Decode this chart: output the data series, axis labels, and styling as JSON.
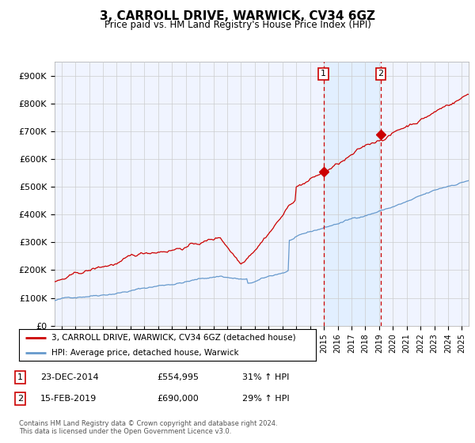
{
  "title": "3, CARROLL DRIVE, WARWICK, CV34 6GZ",
  "subtitle": "Price paid vs. HM Land Registry's House Price Index (HPI)",
  "ylabel_ticks": [
    "£0",
    "£100K",
    "£200K",
    "£300K",
    "£400K",
    "£500K",
    "£600K",
    "£700K",
    "£800K",
    "£900K"
  ],
  "ytick_values": [
    0,
    100000,
    200000,
    300000,
    400000,
    500000,
    600000,
    700000,
    800000,
    900000
  ],
  "ylim": [
    0,
    950000
  ],
  "xlim_start": 1995.5,
  "xlim_end": 2025.5,
  "sale1_x": 2014.98,
  "sale1_y": 554995,
  "sale2_x": 2019.12,
  "sale2_y": 690000,
  "legend_line1": "3, CARROLL DRIVE, WARWICK, CV34 6GZ (detached house)",
  "legend_line2": "HPI: Average price, detached house, Warwick",
  "table_row1": [
    "1",
    "23-DEC-2014",
    "£554,995",
    "31% ↑ HPI"
  ],
  "table_row2": [
    "2",
    "15-FEB-2019",
    "£690,000",
    "29% ↑ HPI"
  ],
  "footnote": "Contains HM Land Registry data © Crown copyright and database right 2024.\nThis data is licensed under the Open Government Licence v3.0.",
  "red_color": "#cc0000",
  "blue_color": "#6699cc",
  "shade_color": "#ddeeff",
  "bg_color": "#f0f4ff",
  "plot_bg": "#ffffff",
  "grid_color": "#cccccc"
}
